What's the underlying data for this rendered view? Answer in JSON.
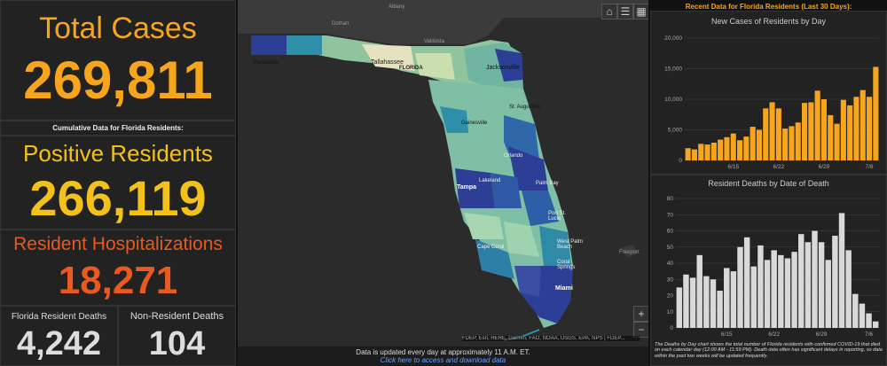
{
  "stats": {
    "total_cases_label": "Total Cases",
    "total_cases_value": "269,811",
    "cumulative_note": "Cumulative Data for Florida Residents:",
    "positive_label": "Positive Residents",
    "positive_value": "266,119",
    "hosp_label": "Resident Hospitalizations",
    "hosp_value": "18,271",
    "deaths_label": "Florida Resident Deaths",
    "deaths_value": "4,242",
    "nonres_label": "Non-Resident Deaths",
    "nonres_value": "104"
  },
  "colors": {
    "orange": "#f7a51c",
    "yellow": "#f3c21a",
    "red": "#e85a1f",
    "white": "#dddddd",
    "bar_orange": "#f7a51c",
    "bar_gray": "#d9d9d9"
  },
  "map": {
    "labels": {
      "albany": "Albany",
      "dothan": "Dothan",
      "valdosta": "Valdosta",
      "tallahassee": "Tallahassee",
      "florida": "FLORIDA",
      "jacksonville": "Jacksonville",
      "pensacola": "Pensacola",
      "gainesville": "Gainesville",
      "st_augustine": "St. Augustine",
      "orlando": "Orlando",
      "tampa": "Tampa",
      "lakeland": "Lakeland",
      "palm_bay": "Palm Bay",
      "port_st_lucie": "Port St. Lucie",
      "west_palm_beach": "West Palm Beach",
      "cape_coral": "Cape Coral",
      "coral_springs": "Coral Springs",
      "miami": "Miami",
      "freeport": "Freeport"
    },
    "attribution": "FDEP, Esri, HERE, Garmin, FAO, NOAA, USGS, EPA, NPS | FDEP...",
    "zoom_in": "+",
    "zoom_out": "−",
    "tool_icons": [
      "home-icon",
      "list-icon",
      "grid-icon"
    ]
  },
  "footer": {
    "update_note": "Data is updated every day at approximately 11 A.M. ET.",
    "download_link": "Click here to access and download data"
  },
  "right": {
    "header": "Recent Data for Florida Residents (Last 30 Days):",
    "cases_title": "New Cases of Residents by Day",
    "deaths_title": "Resident Deaths by Date of Death",
    "deaths_note": "The Deaths by Day chart shows the total number of Florida residents with confirmed COVID-19 that died on each calendar day (12:00 AM - 11:59 PM). Death data often has significant delays in reporting, so data within the past two weeks will be updated frequently."
  },
  "chart_data": [
    {
      "type": "bar",
      "title": "New Cases of Residents by Day",
      "x_ticks": [
        "6/15",
        "6/22",
        "6/29",
        "7/6"
      ],
      "ylim": [
        0,
        20000
      ],
      "y_ticks": [
        "0",
        "5,000",
        "10,000",
        "15,000",
        "20,000"
      ],
      "values": [
        2000,
        1800,
        2700,
        2600,
        2900,
        3400,
        3800,
        4400,
        3300,
        3900,
        5500,
        5000,
        8500,
        9500,
        8500,
        5200,
        5600,
        6200,
        9400,
        9500,
        11400,
        10000,
        7400,
        6000,
        9900,
        9000,
        10400,
        11500,
        10400,
        15300
      ]
    },
    {
      "type": "bar",
      "title": "Resident Deaths by Date of Death",
      "x_ticks": [
        "6/15",
        "6/22",
        "6/29",
        "7/6"
      ],
      "ylim": [
        0,
        80
      ],
      "y_ticks": [
        "0",
        "10",
        "20",
        "30",
        "40",
        "50",
        "60",
        "70",
        "80"
      ],
      "values": [
        25,
        33,
        31,
        45,
        32,
        30,
        23,
        37,
        35,
        50,
        56,
        38,
        51,
        42,
        48,
        45,
        43,
        47,
        58,
        53,
        60,
        53,
        42,
        57,
        71,
        48,
        21,
        15,
        9,
        4
      ]
    }
  ]
}
